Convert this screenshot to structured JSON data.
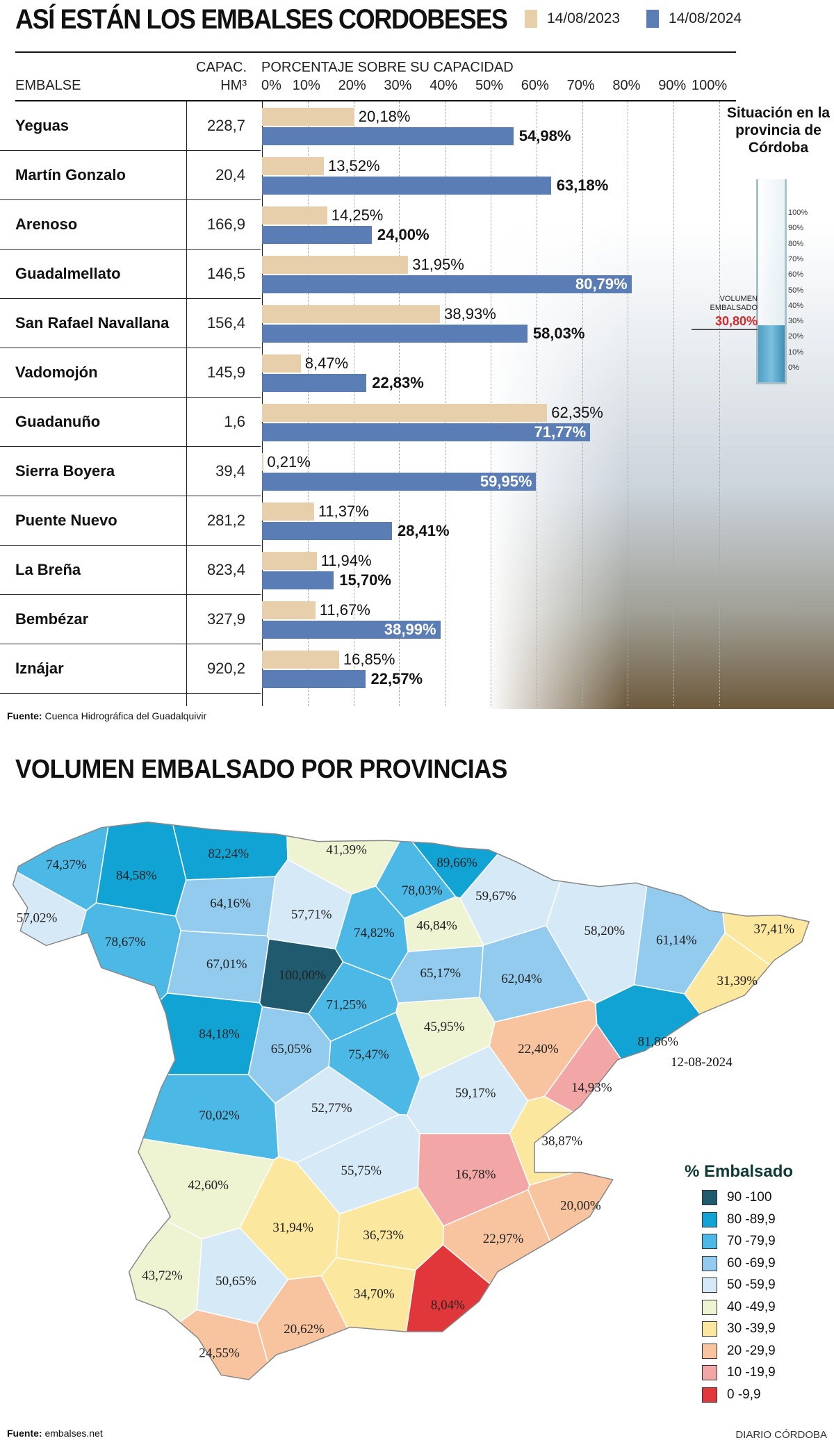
{
  "top": {
    "title": "ASÍ ESTÁN LOS EMBALSES CORDOBESES",
    "col_embalse": "EMBALSE",
    "col_capac": "CAPAC.",
    "col_capac_unit": "HM³",
    "col_pct": "PORCENTAJE SOBRE SU CAPACIDAD",
    "source_label": "Fuente:",
    "source": "Cuenca Hidrográfica del Guadalquivir",
    "province_title": "Situación en la provincia de Córdoba",
    "volume_label": "VOLUMEN EMBALSADO",
    "volume_value": "30,80%",
    "volume_pct": 30.8,
    "cylinder_ticks": [
      "100%",
      "90%",
      "80%",
      "70%",
      "60%",
      "50%",
      "40%",
      "30%",
      "20%",
      "10%",
      "0%"
    ]
  },
  "colors": {
    "y2023": "#e8cfac",
    "y2024": "#5a7db5",
    "volume_red": "#d42a2a"
  },
  "chart_data": [
    {
      "type": "bar",
      "orientation": "horizontal",
      "categories": [
        "Yeguas",
        "Martín Gonzalo",
        "Arenoso",
        "Guadalmellato",
        "San Rafael Navallana",
        "Vadomojón",
        "Guadanuño",
        "Sierra Boyera",
        "Puente Nuevo",
        "La Breña",
        "Bembézar",
        "Iznájar"
      ],
      "capacity_hm3": [
        228.7,
        20.4,
        166.9,
        146.5,
        156.4,
        145.9,
        1.6,
        39.4,
        281.2,
        823.4,
        327.9,
        920.2
      ],
      "series": [
        {
          "name": "14/08/2023",
          "values": [
            20.18,
            13.52,
            14.25,
            31.95,
            38.93,
            8.47,
            62.35,
            0.21,
            11.37,
            11.94,
            11.67,
            16.85
          ]
        },
        {
          "name": "14/08/2024",
          "values": [
            54.98,
            63.18,
            24.0,
            80.79,
            58.03,
            22.83,
            71.77,
            59.95,
            28.41,
            15.7,
            38.99,
            22.57
          ]
        }
      ],
      "xlim": [
        0,
        100
      ],
      "xticks": [
        "0%",
        "10%",
        "20%",
        "30%",
        "40%",
        "50%",
        "60%",
        "70%",
        "80%",
        "90%",
        "100%"
      ],
      "grid": true,
      "legend": "top-right"
    },
    {
      "type": "choropleth",
      "title": "VOLUMEN EMBALSADO POR PROVINCIAS",
      "date": "12-08-2024",
      "values": [
        74.37,
        84.58,
        82.24,
        41.39,
        89.66,
        78.03,
        59.67,
        57.02,
        64.16,
        57.71,
        74.82,
        46.84,
        58.2,
        61.14,
        37.41,
        78.67,
        67.01,
        100.0,
        65.17,
        62.04,
        31.39,
        71.25,
        84.18,
        65.05,
        75.47,
        45.95,
        22.4,
        81.86,
        14.93,
        59.17,
        52.77,
        70.02,
        38.87,
        55.75,
        16.78,
        42.6,
        20.0,
        31.94,
        36.73,
        22.97,
        43.72,
        50.65,
        34.7,
        8.04,
        20.62,
        24.55
      ],
      "legend_title": "% Embalsado",
      "legend": [
        {
          "label": "90 -100",
          "min": 90,
          "color": "#1f5a6e"
        },
        {
          "label": "80 -89,9",
          "min": 80,
          "color": "#11a3d4"
        },
        {
          "label": "70 -79,9",
          "min": 70,
          "color": "#4cb8e6"
        },
        {
          "label": "60 -69,9",
          "min": 60,
          "color": "#92cbed"
        },
        {
          "label": "50 -59,9",
          "min": 50,
          "color": "#d6e9f6"
        },
        {
          "label": "40 -49,9",
          "min": 40,
          "color": "#eef3d2"
        },
        {
          "label": "30 -39,9",
          "min": 30,
          "color": "#fbe79d"
        },
        {
          "label": "20 -29,9",
          "min": 20,
          "color": "#f8c4a0"
        },
        {
          "label": "10 -19,9",
          "min": 10,
          "color": "#f2a6a6"
        },
        {
          "label": "0 -9,9",
          "min": 0,
          "color": "#e2373a"
        }
      ],
      "legend_placement": "bottom-right"
    }
  ],
  "bottom": {
    "source_label": "Fuente:",
    "source": "embalses.net",
    "brand": "DIARIO CÓRDOBA"
  }
}
